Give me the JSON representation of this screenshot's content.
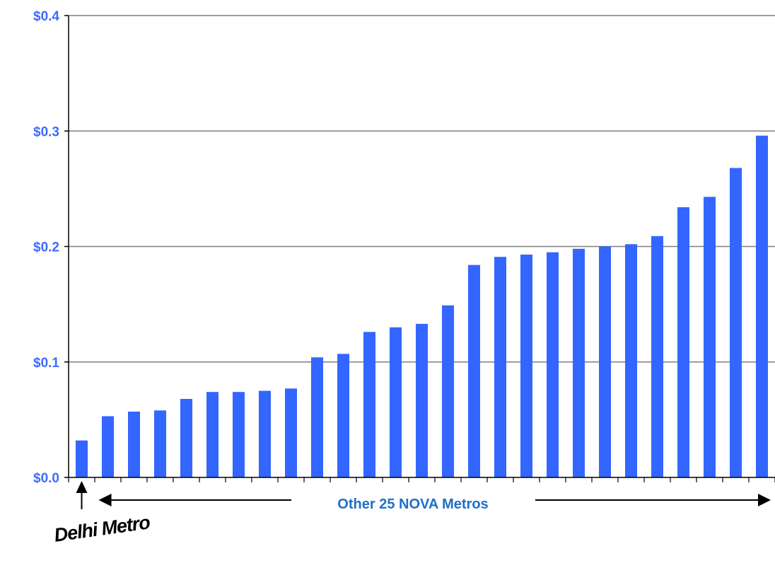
{
  "chart_data": {
    "type": "bar",
    "title": "",
    "xlabel": "",
    "ylabel": "",
    "ylim": [
      0,
      0.4
    ],
    "yticks": [
      "$0.0",
      "$0.1",
      "$0.2",
      "$0.3",
      "$0.4"
    ],
    "grid": true,
    "bar_color": "#3366ff",
    "gridline_color": "#7f7f7f",
    "tick_label_color": "#3d6bff",
    "series": [
      {
        "values": [
          0.032,
          0.053,
          0.057,
          0.058,
          0.068,
          0.074,
          0.074,
          0.075,
          0.077,
          0.104,
          0.107,
          0.126,
          0.13,
          0.133,
          0.149,
          0.184,
          0.191,
          0.193,
          0.195,
          0.198,
          0.2,
          0.202,
          0.209,
          0.234,
          0.243,
          0.268,
          0.296
        ]
      }
    ],
    "annotations": {
      "range_label": "Other 25 NOVA Metros",
      "callout_label": "Delhi Metro"
    }
  }
}
